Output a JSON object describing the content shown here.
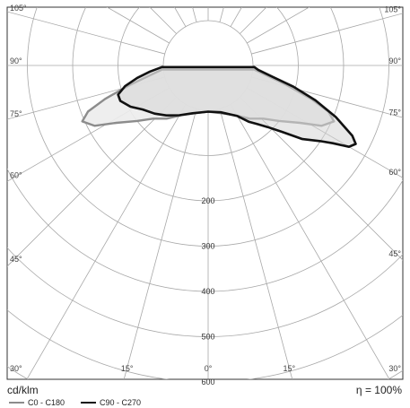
{
  "chart_data": {
    "type": "polar",
    "unit": "cd/klm",
    "efficiency_symbol": "η",
    "efficiency_equals": "=",
    "efficiency": "100%",
    "radial_ticks": [
      200,
      300,
      400,
      500,
      600
    ],
    "radial_max": 700,
    "angle_ticks": [
      {
        "angle": -105,
        "label": "105°"
      },
      {
        "angle": 105,
        "label": "105°"
      },
      {
        "angle": -90,
        "label": "90°"
      },
      {
        "angle": 90,
        "label": "90°"
      },
      {
        "angle": -75,
        "label": "75°"
      },
      {
        "angle": 75,
        "label": "75°"
      },
      {
        "angle": -60,
        "label": "60°"
      },
      {
        "angle": 60,
        "label": "60°"
      },
      {
        "angle": -45,
        "label": "45°"
      },
      {
        "angle": 45,
        "label": "45°"
      },
      {
        "angle": -30,
        "label": "30°"
      },
      {
        "angle": 30,
        "label": "30°"
      },
      {
        "angle": -15,
        "label": "15°"
      },
      {
        "angle": 15,
        "label": "15°"
      },
      {
        "angle": 0,
        "label": "0°"
      }
    ],
    "spoke_angles": [
      -165,
      -150,
      -135,
      -120,
      -105,
      -90,
      -75,
      -60,
      -45,
      -30,
      -15,
      0,
      15,
      30,
      45,
      60,
      75,
      90,
      105,
      120,
      135,
      150,
      165,
      180
    ],
    "grid": true,
    "legend_position": "bottom-left",
    "series": [
      {
        "name": "C0 - C180",
        "color": "#8c8c8c",
        "fill": "#ececec",
        "points": [
          [
            -85,
            3
          ],
          [
            -80,
            35
          ],
          [
            -76,
            80
          ],
          [
            -72,
            140
          ],
          [
            -69,
            185
          ],
          [
            -66,
            205
          ],
          [
            -62,
            185
          ],
          [
            -58,
            140
          ],
          [
            -52,
            100
          ],
          [
            -46,
            70
          ],
          [
            -38,
            50
          ],
          [
            -28,
            25
          ],
          [
            -15,
            10
          ],
          [
            0,
            3
          ],
          [
            15,
            10
          ],
          [
            28,
            25
          ],
          [
            38,
            50
          ],
          [
            46,
            70
          ],
          [
            52,
            100
          ],
          [
            58,
            140
          ],
          [
            62,
            185
          ],
          [
            66,
            205
          ],
          [
            69,
            185
          ],
          [
            72,
            140
          ],
          [
            76,
            80
          ],
          [
            80,
            35
          ],
          [
            85,
            3
          ]
        ]
      },
      {
        "name": "C90 - C270",
        "color": "#111111",
        "fill": "#d6d6d6",
        "points": [
          [
            -88,
            3
          ],
          [
            -84,
            30
          ],
          [
            -80,
            60
          ],
          [
            -76,
            90
          ],
          [
            -72,
            110
          ],
          [
            -68,
            110
          ],
          [
            -62,
            95
          ],
          [
            -56,
            75
          ],
          [
            -48,
            60
          ],
          [
            -40,
            45
          ],
          [
            -30,
            28
          ],
          [
            -18,
            12
          ],
          [
            0,
            3
          ],
          [
            15,
            8
          ],
          [
            30,
            30
          ],
          [
            36,
            55
          ],
          [
            40,
            70
          ],
          [
            44,
            90
          ],
          [
            48,
            120
          ],
          [
            52,
            165
          ],
          [
            56,
            200
          ],
          [
            58,
            225
          ],
          [
            60,
            260
          ],
          [
            62,
            270
          ],
          [
            64,
            255
          ],
          [
            68,
            205
          ],
          [
            72,
            150
          ],
          [
            76,
            95
          ],
          [
            80,
            45
          ],
          [
            85,
            12
          ],
          [
            88,
            3
          ]
        ]
      }
    ]
  }
}
